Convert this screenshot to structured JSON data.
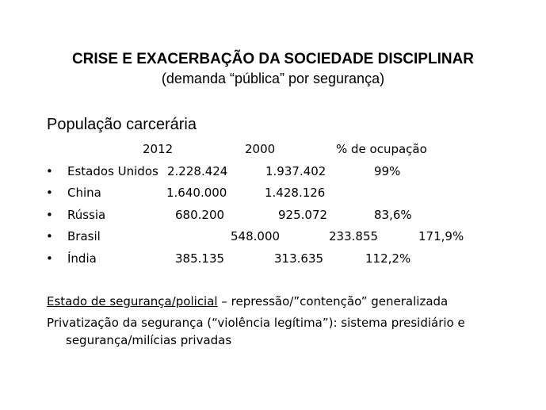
{
  "title": "CRISE E EXACERBAÇÃO DA SOCIEDADE DISCIPLINAR",
  "subtitle": "(demanda “pública” por segurança)",
  "section_heading": "População carcerária",
  "table": {
    "headers": [
      "2012",
      "2000",
      "% de ocupação"
    ],
    "bullet": "•",
    "rows": [
      {
        "country": "Estados Unidos",
        "v2012": "2.228.424",
        "v2000": "1.937.402",
        "occupation": "99%"
      },
      {
        "country": "China",
        "v2012": "1.640.000",
        "v2000": "1.428.126",
        "occupation": ""
      },
      {
        "country": "Rússia",
        "v2012": "680.200",
        "v2000": "925.072",
        "occupation": "83,6%"
      },
      {
        "country": "Brasil",
        "v2012": "548.000",
        "v2000": "233.855",
        "occupation": "171,9%"
      },
      {
        "country": "Índia",
        "v2012": "385.135",
        "v2000": "313.635",
        "occupation": "112,2%"
      }
    ]
  },
  "paragraph1": {
    "underlined": "Estado de segurança/policial",
    "rest": " – repressão/”contenção” generalizada"
  },
  "paragraph2": {
    "line1": "Privatização da segurança  (“violência legítima”): sistema presidiário e",
    "line2": "segurança/milícias privadas"
  }
}
